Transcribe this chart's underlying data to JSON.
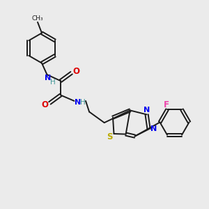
{
  "background_color": "#ebebeb",
  "bond_color": "#1a1a1a",
  "N_color": "#0000ee",
  "O_color": "#dd0000",
  "S_color": "#bbaa00",
  "F_color": "#ee44aa",
  "H_color": "#449999",
  "figsize": [
    3.0,
    3.0
  ],
  "dpi": 100,
  "xlim": [
    0,
    10
  ],
  "ylim": [
    0,
    10
  ]
}
